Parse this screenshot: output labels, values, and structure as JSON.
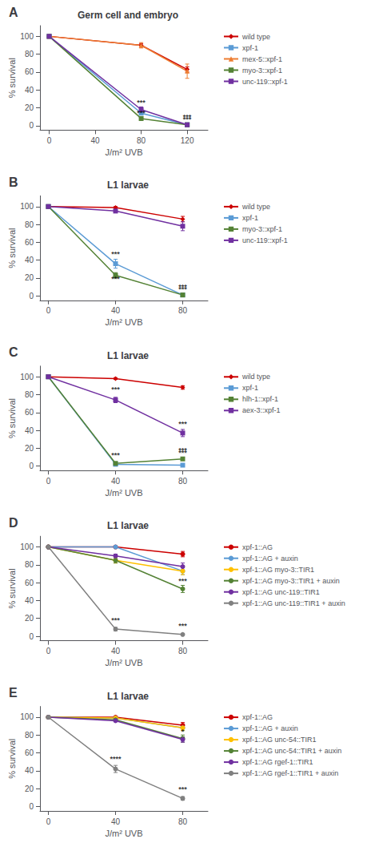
{
  "chart_data": [
    {
      "type": "line",
      "panel_label": "A",
      "title": "Germ cell and embryo",
      "xlabel": "J/m² UVB",
      "ylabel": "% survival",
      "xlim": [
        -8,
        138
      ],
      "ylim": [
        -5,
        112
      ],
      "xticks": [
        0,
        40,
        80,
        120
      ],
      "yticks": [
        0,
        20,
        40,
        60,
        80,
        100
      ],
      "grid": false,
      "legend": "right",
      "x": [
        0,
        80,
        120
      ],
      "series": [
        {
          "name": "wild type",
          "color": "#cc0000",
          "marker": "diamond",
          "values": [
            100,
            90,
            63
          ],
          "errors": [
            0,
            2,
            3
          ]
        },
        {
          "name": "xpf-1",
          "color": "#5b9bd5",
          "marker": "square",
          "values": [
            100,
            14,
            1
          ],
          "errors": [
            0,
            2,
            0.5
          ]
        },
        {
          "name": "mex-5::xpf-1",
          "color": "#ed7d31",
          "marker": "triangle",
          "values": [
            100,
            90,
            61
          ],
          "errors": [
            0,
            3,
            8
          ]
        },
        {
          "name": "myo-3::xpf-1",
          "color": "#548235",
          "marker": "square",
          "values": [
            100,
            8,
            1
          ],
          "errors": [
            0,
            2,
            0.5
          ]
        },
        {
          "name": "unc-119::xpf-1",
          "color": "#7030a0",
          "marker": "square",
          "values": [
            100,
            18,
            1
          ],
          "errors": [
            0,
            3,
            0.5
          ]
        }
      ],
      "annotations": [
        {
          "x": 80,
          "y": 22,
          "text": "***"
        },
        {
          "x": 80,
          "y": 10,
          "text": "***"
        },
        {
          "x": 120,
          "y": 6,
          "text": "***"
        },
        {
          "x": 120,
          "y": 3,
          "text": "***"
        }
      ]
    },
    {
      "type": "line",
      "panel_label": "B",
      "title": "L1 larvae",
      "xlabel": "J/m² UVB",
      "ylabel": "% survival",
      "xlim": [
        -5,
        95
      ],
      "ylim": [
        -5,
        112
      ],
      "xticks": [
        0,
        40,
        80
      ],
      "yticks": [
        0,
        20,
        40,
        60,
        80,
        100
      ],
      "grid": false,
      "legend": "right",
      "x": [
        0,
        40,
        80
      ],
      "series": [
        {
          "name": "wild type",
          "color": "#cc0000",
          "marker": "diamond",
          "values": [
            100,
            99,
            86
          ],
          "errors": [
            0,
            1,
            3
          ]
        },
        {
          "name": "xpf-1",
          "color": "#5b9bd5",
          "marker": "square",
          "values": [
            100,
            36,
            1
          ],
          "errors": [
            0,
            5,
            0.5
          ]
        },
        {
          "name": "myo-3::xpf-1",
          "color": "#548235",
          "marker": "square",
          "values": [
            100,
            23,
            1
          ],
          "errors": [
            0,
            3,
            0.5
          ]
        },
        {
          "name": "unc-119::xpf-1",
          "color": "#7030a0",
          "marker": "square",
          "values": [
            100,
            95,
            78
          ],
          "errors": [
            0,
            2,
            5
          ]
        }
      ],
      "annotations": [
        {
          "x": 40,
          "y": 43,
          "text": "***"
        },
        {
          "x": 40,
          "y": 15,
          "text": "***"
        },
        {
          "x": 80,
          "y": 6,
          "text": "***"
        },
        {
          "x": 80,
          "y": 3,
          "text": "***"
        }
      ]
    },
    {
      "type": "line",
      "panel_label": "C",
      "title": "L1 larvae",
      "xlabel": "J/m² UVB",
      "ylabel": "% survival",
      "xlim": [
        -5,
        95
      ],
      "ylim": [
        -5,
        112
      ],
      "xticks": [
        0,
        40,
        80
      ],
      "yticks": [
        0,
        20,
        40,
        60,
        80,
        100
      ],
      "grid": false,
      "legend": "right",
      "x": [
        0,
        40,
        80
      ],
      "series": [
        {
          "name": "wild type",
          "color": "#cc0000",
          "marker": "diamond",
          "values": [
            100,
            98,
            88
          ],
          "errors": [
            0,
            1,
            2
          ]
        },
        {
          "name": "xpf-1",
          "color": "#5b9bd5",
          "marker": "square",
          "values": [
            100,
            2,
            1
          ],
          "errors": [
            0,
            0.5,
            0.5
          ]
        },
        {
          "name": "hlh-1::xpf-1",
          "color": "#548235",
          "marker": "square",
          "values": [
            100,
            3,
            8
          ],
          "errors": [
            0,
            0.5,
            1
          ]
        },
        {
          "name": "aex-3::xpf-1",
          "color": "#7030a0",
          "marker": "square",
          "values": [
            100,
            74,
            37
          ],
          "errors": [
            0,
            3,
            4
          ]
        }
      ],
      "annotations": [
        {
          "x": 40,
          "y": 82,
          "text": "***"
        },
        {
          "x": 40,
          "y": 8,
          "text": "***"
        },
        {
          "x": 80,
          "y": 43,
          "text": "***"
        },
        {
          "x": 80,
          "y": 14,
          "text": "***"
        },
        {
          "x": 80,
          "y": 11,
          "text": "***"
        }
      ]
    },
    {
      "type": "line",
      "panel_label": "D",
      "title": "L1 larvae",
      "xlabel": "J/m² UVB",
      "ylabel": "% survival",
      "xlim": [
        -5,
        95
      ],
      "ylim": [
        -5,
        112
      ],
      "xticks": [
        0,
        40,
        80
      ],
      "yticks": [
        0,
        20,
        40,
        60,
        80,
        100
      ],
      "grid": false,
      "legend": "right",
      "x": [
        0,
        40,
        80
      ],
      "series": [
        {
          "name": "xpf-1::AG",
          "color": "#cc0000",
          "marker": "circle",
          "values": [
            100,
            100,
            92
          ],
          "errors": [
            0,
            1,
            3
          ]
        },
        {
          "name": "xpf-1::AG + auxin",
          "color": "#5b9bd5",
          "marker": "circle",
          "values": [
            100,
            100,
            73
          ],
          "errors": [
            0,
            1,
            4
          ]
        },
        {
          "name": "xpf-1::AG myo-3::TIR1",
          "color": "#ffc000",
          "marker": "circle",
          "values": [
            100,
            85,
            73
          ],
          "errors": [
            0,
            3,
            4
          ]
        },
        {
          "name": "xpf-1::AG myo-3::TIR1 + auxin",
          "color": "#548235",
          "marker": "circle",
          "values": [
            100,
            85,
            53
          ],
          "errors": [
            0,
            3,
            4
          ]
        },
        {
          "name": "xpf-1::AG unc-119::TIR1",
          "color": "#7030a0",
          "marker": "circle",
          "values": [
            100,
            90,
            78
          ],
          "errors": [
            0,
            2,
            4
          ]
        },
        {
          "name": "xpf-1::AG unc-119::TIR1 + auxin",
          "color": "#808080",
          "marker": "circle",
          "values": [
            100,
            8,
            2
          ],
          "errors": [
            0,
            2,
            0.5
          ]
        }
      ],
      "annotations": [
        {
          "x": 40,
          "y": 14,
          "text": "***"
        },
        {
          "x": 80,
          "y": 8,
          "text": "***"
        },
        {
          "x": 80,
          "y": 58,
          "text": "***"
        }
      ]
    },
    {
      "type": "line",
      "panel_label": "E",
      "title": "L1 larvae",
      "xlabel": "J/m² UVB",
      "ylabel": "% survival",
      "xlim": [
        -5,
        95
      ],
      "ylim": [
        -5,
        112
      ],
      "xticks": [
        0,
        40,
        80
      ],
      "yticks": [
        0,
        20,
        40,
        60,
        80,
        100
      ],
      "grid": false,
      "legend": "right",
      "x": [
        0,
        40,
        80
      ],
      "series": [
        {
          "name": "xpf-1::AG",
          "color": "#cc0000",
          "marker": "circle",
          "values": [
            100,
            100,
            91
          ],
          "errors": [
            0,
            1,
            3
          ]
        },
        {
          "name": "xpf-1::AG + auxin",
          "color": "#5b9bd5",
          "marker": "circle",
          "values": [
            100,
            99,
            88
          ],
          "errors": [
            0,
            1,
            3
          ]
        },
        {
          "name": "xpf-1::AG unc-54::TIR1",
          "color": "#ffc000",
          "marker": "circle",
          "values": [
            100,
            99,
            88
          ],
          "errors": [
            0,
            1,
            3
          ]
        },
        {
          "name": "xpf-1::AG unc-54::TIR1 + auxin",
          "color": "#548235",
          "marker": "circle",
          "values": [
            100,
            97,
            76
          ],
          "errors": [
            0,
            1,
            4
          ]
        },
        {
          "name": "xpf-1::AG rgef-1::TIR1",
          "color": "#7030a0",
          "marker": "circle",
          "values": [
            100,
            96,
            75
          ],
          "errors": [
            0,
            1,
            3
          ]
        },
        {
          "name": "xpf-1::AG rgef-1::TIR1 + auxin",
          "color": "#808080",
          "marker": "circle",
          "values": [
            100,
            42,
            9
          ],
          "errors": [
            0,
            4,
            2
          ]
        }
      ],
      "annotations": [
        {
          "x": 40,
          "y": 49,
          "text": "****"
        },
        {
          "x": 80,
          "y": 15,
          "text": "***"
        },
        {
          "x": 80,
          "y": 80,
          "text": "*"
        }
      ]
    }
  ]
}
